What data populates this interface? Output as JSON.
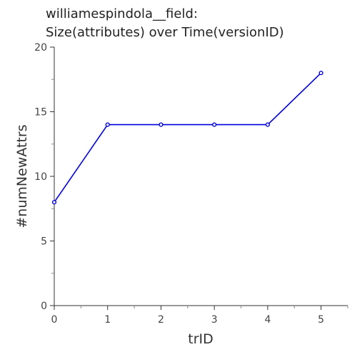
{
  "chart_data": {
    "type": "line",
    "title": "williamespindola__field:",
    "subtitle": "Size(attributes) over Time(versionID)",
    "xlabel": "trID",
    "ylabel": "#numNewAttrs",
    "x": [
      0,
      1,
      2,
      3,
      4,
      5
    ],
    "series": [
      {
        "values": [
          8,
          14,
          14,
          14,
          14,
          18
        ]
      }
    ],
    "xlim": [
      0,
      5.5
    ],
    "ylim": [
      0,
      20
    ],
    "xticks": [
      0,
      1,
      2,
      3,
      4,
      5
    ],
    "yticks": [
      0,
      5,
      10,
      15,
      20
    ],
    "grid": false,
    "line_color": "#0000dd"
  }
}
